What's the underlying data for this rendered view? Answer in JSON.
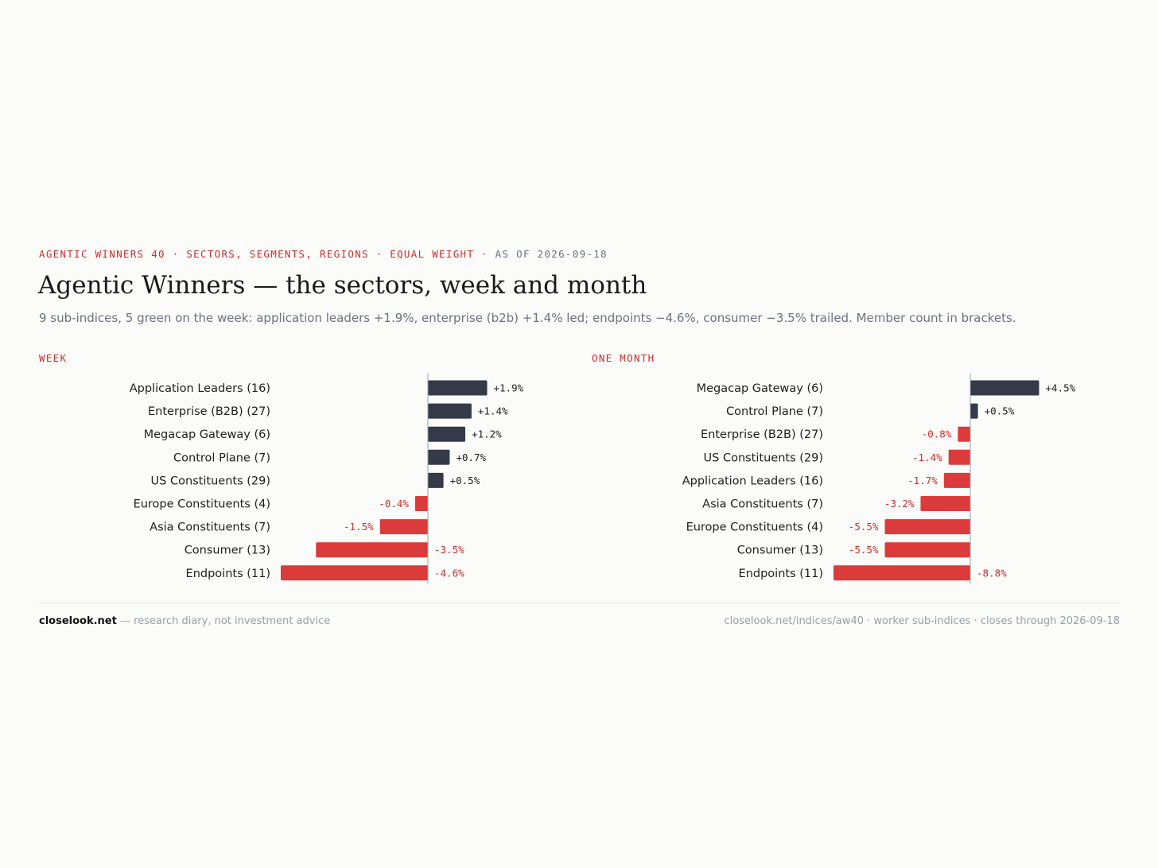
{
  "header": {
    "kicker": "AGENTIC WINNERS 40 · SECTORS, SEGMENTS, REGIONS · EQUAL WEIGHT · ",
    "asof": "AS OF 2026-09-18",
    "title": "Agentic Winners — the sectors, week and month",
    "subtitle": "9 sub-indices, 5 green on the week: application leaders +1.9%, enterprise (b2b) +1.4% led; endpoints −4.6%, consumer −3.5% trailed. Member count in brackets."
  },
  "colors": {
    "positive": "#343a48",
    "negative": "#dc3b3b",
    "accent": "#c8302c",
    "axis": "#9aa0a8"
  },
  "chart_data": [
    {
      "type": "bar",
      "orientation": "horizontal",
      "title": "WEEK",
      "categories": [
        "Application Leaders (16)",
        "Enterprise (B2B) (27)",
        "Megacap Gateway (6)",
        "Control Plane (7)",
        "US Constituents (29)",
        "Europe Constituents (4)",
        "Asia Constituents (7)",
        "Consumer (13)",
        "Endpoints (11)"
      ],
      "values": [
        1.9,
        1.4,
        1.2,
        0.7,
        0.5,
        -0.4,
        -1.5,
        -3.5,
        -4.6
      ],
      "value_labels": [
        "+1.9%",
        "+1.4%",
        "+1.2%",
        "+0.7%",
        "+0.5%",
        "-0.4%",
        "-1.5%",
        "-3.5%",
        "-4.6%"
      ],
      "xlim": [
        -4.6,
        1.9
      ],
      "grid": false
    },
    {
      "type": "bar",
      "orientation": "horizontal",
      "title": "ONE MONTH",
      "categories": [
        "Megacap Gateway (6)",
        "Control Plane (7)",
        "Enterprise (B2B) (27)",
        "US Constituents (29)",
        "Application Leaders (16)",
        "Asia Constituents (7)",
        "Europe Constituents (4)",
        "Consumer (13)",
        "Endpoints (11)"
      ],
      "values": [
        4.5,
        0.5,
        -0.8,
        -1.4,
        -1.7,
        -3.2,
        -5.5,
        -5.5,
        -8.8
      ],
      "value_labels": [
        "+4.5%",
        "+0.5%",
        "-0.8%",
        "-1.4%",
        "-1.7%",
        "-3.2%",
        "-5.5%",
        "-5.5%",
        "-8.8%"
      ],
      "xlim": [
        -8.8,
        4.5
      ],
      "grid": false
    }
  ],
  "footer": {
    "brand": "closelook.net",
    "tagline": " — research diary, not investment advice",
    "source": "closelook.net/indices/aw40 · worker sub-indices · closes through 2026-09-18"
  }
}
